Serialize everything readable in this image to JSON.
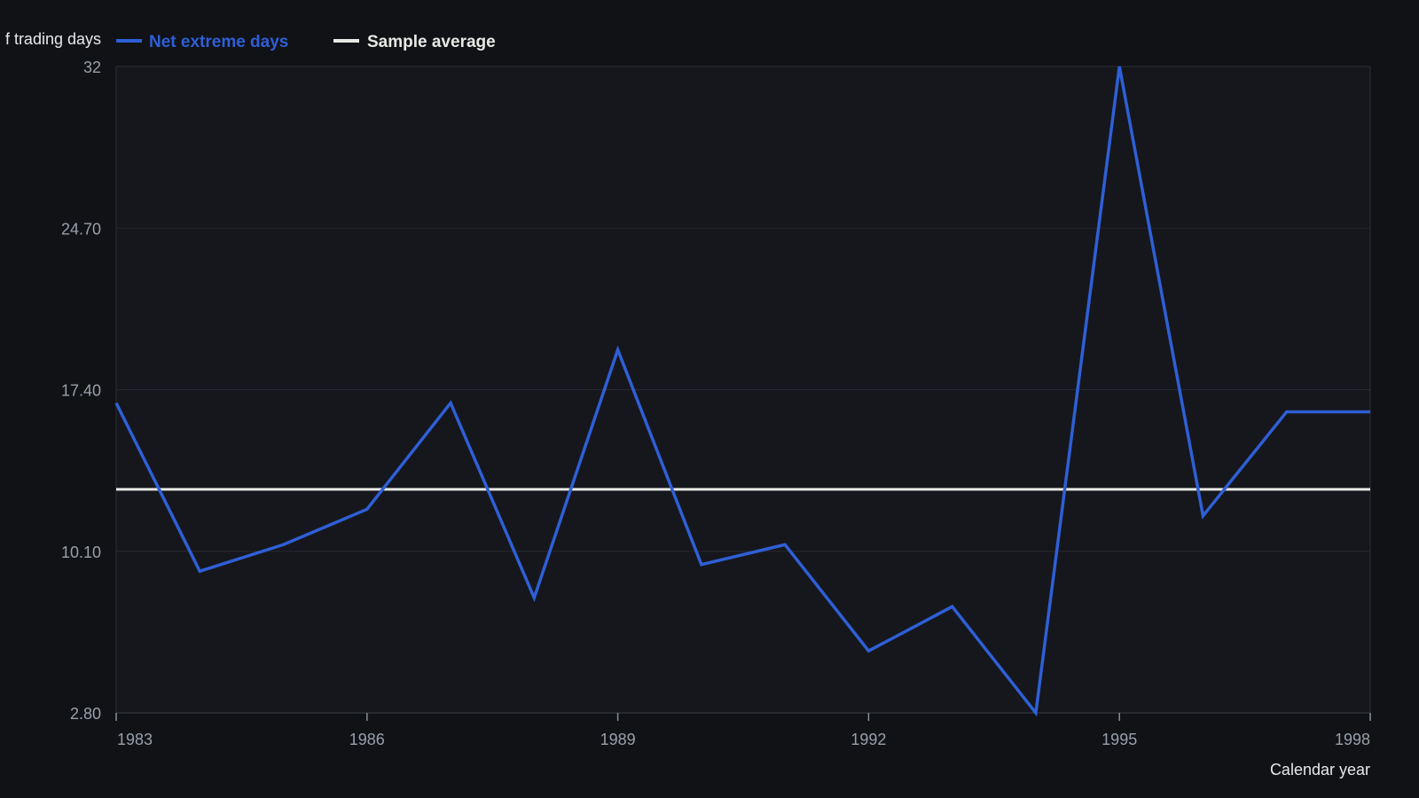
{
  "chart_data": {
    "type": "line",
    "title": "",
    "xlabel": "Calendar year",
    "ylabel": "f trading days",
    "x": [
      1983,
      1984,
      1985,
      1986,
      1987,
      1988,
      1989,
      1990,
      1991,
      1992,
      1993,
      1994,
      1995,
      1996,
      1997,
      1998
    ],
    "x_ticks": [
      "1983",
      "1986",
      "1989",
      "1992",
      "1995",
      "1998"
    ],
    "y_ticks": [
      "2.80",
      "10.10",
      "17.40",
      "24.70",
      "32"
    ],
    "ylim": [
      2.8,
      32
    ],
    "xlim": [
      1983,
      1998
    ],
    "grid": true,
    "legend_position": "top-left",
    "series": [
      {
        "name": "Net extreme days",
        "color": "#2f5fd6",
        "values": [
          16.8,
          9.2,
          10.4,
          12.0,
          16.8,
          8.0,
          19.2,
          9.5,
          10.4,
          5.6,
          7.6,
          2.8,
          32.0,
          11.7,
          16.4,
          16.4
        ]
      },
      {
        "name": "Sample average",
        "color": "#e8e8e4",
        "values": [
          12.9,
          12.9,
          12.9,
          12.9,
          12.9,
          12.9,
          12.9,
          12.9,
          12.9,
          12.9,
          12.9,
          12.9,
          12.9,
          12.9,
          12.9,
          12.9
        ]
      }
    ]
  }
}
